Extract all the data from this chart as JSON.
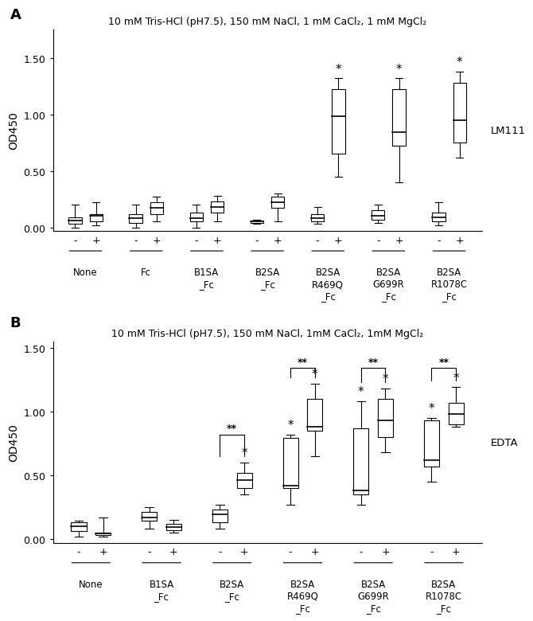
{
  "panel_A": {
    "title": "10 mM Tris-HCl (pH7.5), 150 mM NaCl, 1 mM CaCl₂, 1 mM MgCl₂",
    "ylabel": "OD450",
    "right_label": "LM111",
    "ylim": [
      -0.03,
      1.75
    ],
    "yticks": [
      0.0,
      0.5,
      1.0,
      1.5
    ],
    "yticklabels": [
      "0.00",
      "0.50",
      "1.00",
      "1.50"
    ],
    "groups": [
      "None",
      "Fc",
      "B1SA\n_Fc",
      "B2SA\n_Fc",
      "B2SA\nR469Q\n_Fc",
      "B2SA\nG699R\n_Fc",
      "B2SA\nR1078C\n_Fc"
    ],
    "boxes": [
      {
        "whislo": 0.0,
        "q1": 0.03,
        "med": 0.06,
        "q3": 0.09,
        "whishi": 0.2
      },
      {
        "whislo": 0.02,
        "q1": 0.05,
        "med": 0.1,
        "q3": 0.12,
        "whishi": 0.22
      },
      {
        "whislo": 0.0,
        "q1": 0.04,
        "med": 0.08,
        "q3": 0.12,
        "whishi": 0.2
      },
      {
        "whislo": 0.05,
        "q1": 0.12,
        "med": 0.17,
        "q3": 0.22,
        "whishi": 0.27
      },
      {
        "whislo": 0.0,
        "q1": 0.05,
        "med": 0.08,
        "q3": 0.13,
        "whishi": 0.2
      },
      {
        "whislo": 0.05,
        "q1": 0.13,
        "med": 0.18,
        "q3": 0.23,
        "whishi": 0.28
      },
      {
        "whislo": 0.03,
        "q1": 0.04,
        "med": 0.05,
        "q3": 0.06,
        "whishi": 0.07
      },
      {
        "whislo": 0.05,
        "q1": 0.17,
        "med": 0.22,
        "q3": 0.27,
        "whishi": 0.3
      },
      {
        "whislo": 0.03,
        "q1": 0.05,
        "med": 0.08,
        "q3": 0.12,
        "whishi": 0.18
      },
      {
        "whislo": 0.45,
        "q1": 0.65,
        "med": 0.98,
        "q3": 1.22,
        "whishi": 1.32,
        "star": true
      },
      {
        "whislo": 0.04,
        "q1": 0.07,
        "med": 0.1,
        "q3": 0.15,
        "whishi": 0.2
      },
      {
        "whislo": 0.4,
        "q1": 0.72,
        "med": 0.84,
        "q3": 1.22,
        "whishi": 1.32,
        "star": true
      },
      {
        "whislo": 0.02,
        "q1": 0.05,
        "med": 0.09,
        "q3": 0.13,
        "whishi": 0.22
      },
      {
        "whislo": 0.62,
        "q1": 0.75,
        "med": 0.95,
        "q3": 1.28,
        "whishi": 1.38,
        "star": true
      }
    ]
  },
  "panel_B": {
    "title": "10 mM Tris-HCl (pH7.5), 150 mM NaCl, 1mM CaCl₂, 1mM MgCl₂",
    "ylabel": "OD450",
    "right_label": "EDTA",
    "ylim": [
      -0.03,
      1.55
    ],
    "yticks": [
      0.0,
      0.5,
      1.0,
      1.5
    ],
    "yticklabels": [
      "0.00",
      "0.50",
      "1.00",
      "1.50"
    ],
    "groups": [
      "None",
      "B1SA\n_Fc",
      "B2SA\n_Fc",
      "B2SA\nR469Q\n_Fc",
      "B2SA\nG699R\n_Fc",
      "B2SA\nR1078C\n_Fc"
    ],
    "boxes": [
      {
        "whislo": 0.02,
        "q1": 0.06,
        "med": 0.1,
        "q3": 0.13,
        "whishi": 0.14
      },
      {
        "whislo": 0.02,
        "q1": 0.03,
        "med": 0.04,
        "q3": 0.05,
        "whishi": 0.17
      },
      {
        "whislo": 0.08,
        "q1": 0.14,
        "med": 0.17,
        "q3": 0.21,
        "whishi": 0.25
      },
      {
        "whislo": 0.05,
        "q1": 0.07,
        "med": 0.09,
        "q3": 0.12,
        "whishi": 0.15
      },
      {
        "whislo": 0.08,
        "q1": 0.13,
        "med": 0.19,
        "q3": 0.23,
        "whishi": 0.27,
        "dstar": true
      },
      {
        "whislo": 0.35,
        "q1": 0.4,
        "med": 0.46,
        "q3": 0.52,
        "whishi": 0.6,
        "star": true
      },
      {
        "whislo": 0.27,
        "q1": 0.4,
        "med": 0.42,
        "q3": 0.79,
        "whishi": 0.82,
        "star": true
      },
      {
        "whislo": 0.65,
        "q1": 0.85,
        "med": 0.88,
        "q3": 1.1,
        "whishi": 1.22,
        "star": true,
        "dstar": true
      },
      {
        "whislo": 0.27,
        "q1": 0.35,
        "med": 0.38,
        "q3": 0.87,
        "whishi": 1.08,
        "star": true
      },
      {
        "whislo": 0.68,
        "q1": 0.8,
        "med": 0.93,
        "q3": 1.1,
        "whishi": 1.18,
        "star": true,
        "dstar": true
      },
      {
        "whislo": 0.45,
        "q1": 0.57,
        "med": 0.62,
        "q3": 0.93,
        "whishi": 0.95,
        "star": true
      },
      {
        "whislo": 0.88,
        "q1": 0.9,
        "med": 0.98,
        "q3": 1.07,
        "whishi": 1.19,
        "star": true,
        "dstar": true
      }
    ]
  }
}
